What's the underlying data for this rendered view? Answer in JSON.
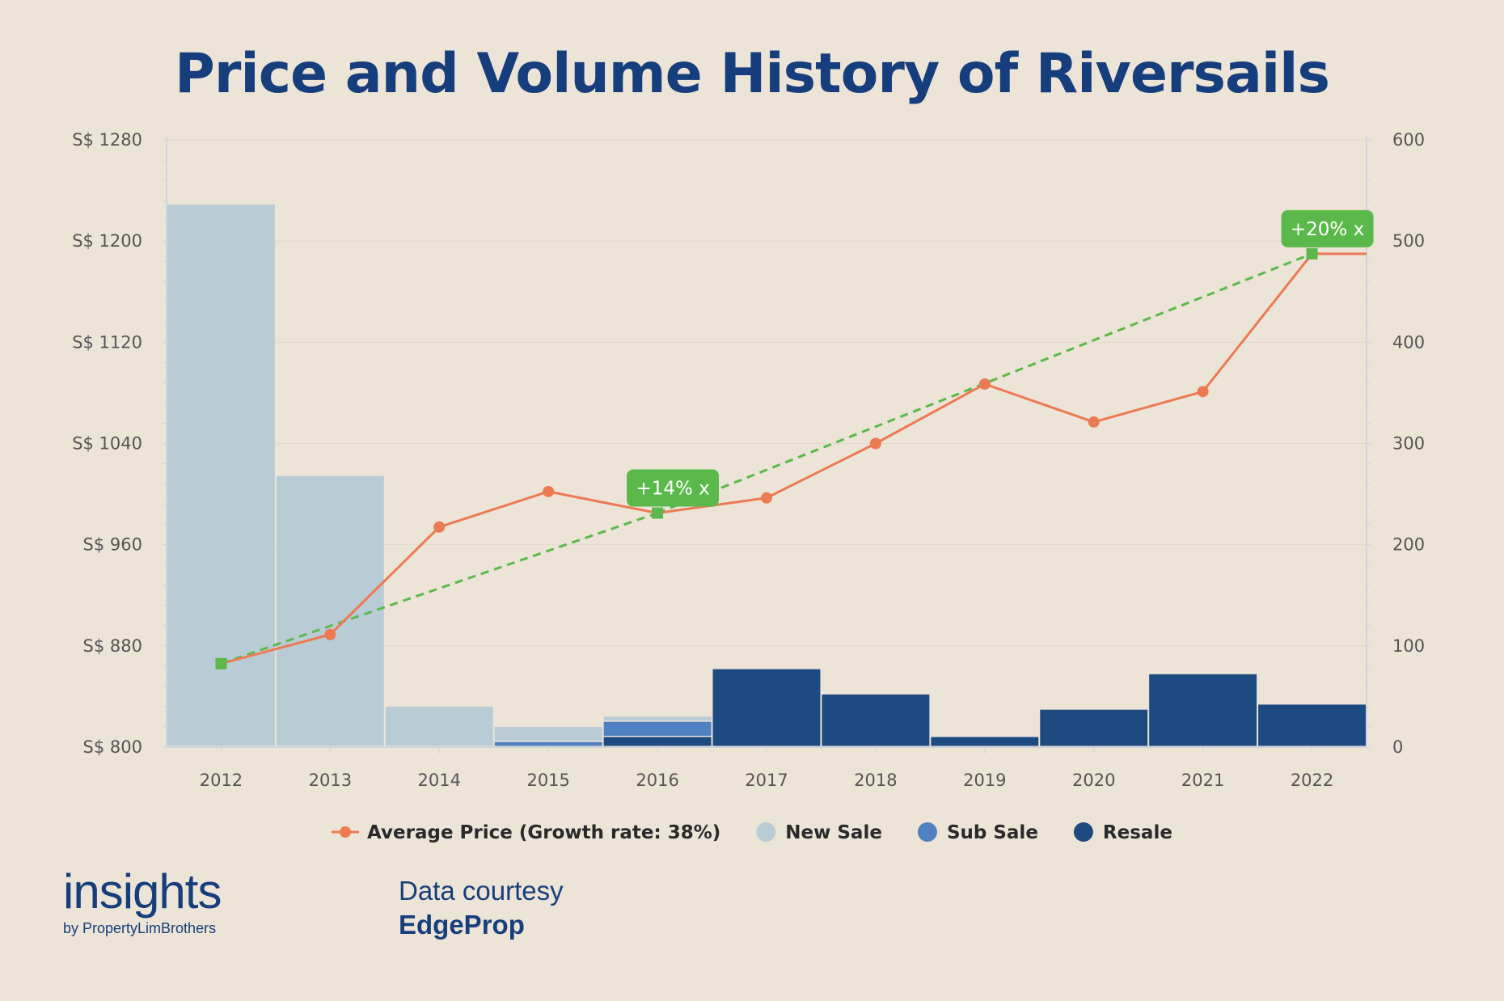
{
  "chart_data": {
    "type": "bar",
    "title": "Price and Volume History of Riversails",
    "categories": [
      "2012",
      "2013",
      "2014",
      "2015",
      "2016",
      "2017",
      "2018",
      "2019",
      "2020",
      "2021",
      "2022"
    ],
    "y_left": {
      "min": 800,
      "max": 1280,
      "ticks": [
        1280,
        1200,
        1120,
        1040,
        960,
        880,
        800
      ],
      "tick_labels": [
        "S$ 1280",
        "S$ 1200",
        "S$ 1120",
        "S$ 1040",
        "S$ 960",
        "S$ 880",
        "S$ 800"
      ]
    },
    "y_right": {
      "min": 0,
      "max": 600,
      "ticks": [
        600,
        500,
        400,
        300,
        200,
        100,
        0
      ],
      "tick_labels": [
        "600",
        "500",
        "400",
        "300",
        "200",
        "100",
        "0"
      ]
    },
    "bar_series": [
      {
        "name": "Resale",
        "color": "#1e4a82",
        "values": [
          0,
          0,
          0,
          0,
          10,
          77,
          52,
          10,
          37,
          72,
          42
        ]
      },
      {
        "name": "Sub Sale",
        "color": "#4f81c2",
        "values": [
          0,
          0,
          0,
          5,
          15,
          0,
          0,
          0,
          0,
          0,
          0
        ]
      },
      {
        "name": "New Sale",
        "color": "#b9ccd6",
        "values": [
          536,
          268,
          40,
          15,
          5,
          0,
          0,
          0,
          0,
          0,
          0
        ]
      }
    ],
    "line_series": {
      "name": "Average Price (Growth rate: 38%)",
      "color": "#ec7a52",
      "values": [
        866,
        889,
        974,
        1002,
        985,
        997,
        1040,
        1087,
        1057,
        1081,
        1190
      ]
    },
    "trend_segments": [
      {
        "from": "2012",
        "to": "2016",
        "from_value": 866,
        "to_value": 985,
        "label": "+14% x"
      },
      {
        "from": "2016",
        "to": "2022",
        "from_value": 985,
        "to_value": 1190,
        "label": "+20% x"
      }
    ],
    "trend_color": "#5ab94a",
    "legend": {
      "position": "bottom",
      "items": [
        {
          "name": "Average Price (Growth rate: 38%)",
          "color": "#ec7a52",
          "marker": "line"
        },
        {
          "name": "New Sale",
          "color": "#b9ccd6",
          "marker": "circle"
        },
        {
          "name": "Sub Sale",
          "color": "#4f81c2",
          "marker": "circle"
        },
        {
          "name": "Resale",
          "color": "#1e4a82",
          "marker": "circle"
        }
      ]
    }
  },
  "branding": {
    "name": "insights",
    "sub": "by PropertyLimBrothers",
    "courtesy_label": "Data courtesy",
    "courtesy_source": "EdgeProp"
  }
}
